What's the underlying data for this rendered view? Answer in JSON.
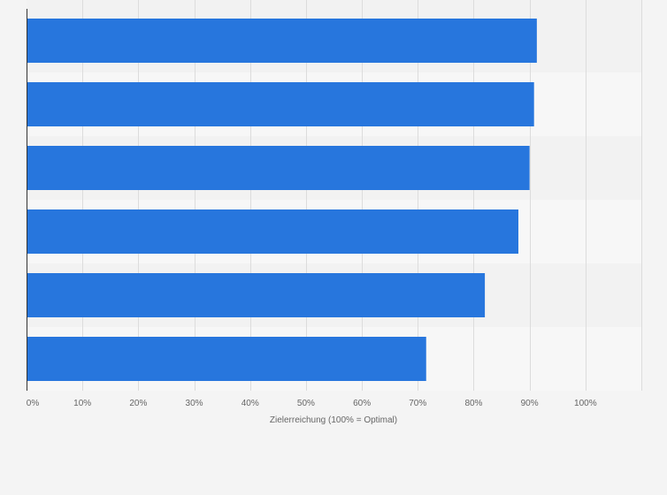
{
  "chart_data": {
    "type": "bar",
    "orientation": "horizontal",
    "categories": [
      "",
      "",
      "",
      "",
      "",
      ""
    ],
    "values": [
      91.3,
      90.8,
      90.0,
      88.0,
      82.0,
      71.5
    ],
    "xlabel": "Zielerreichung (100% = Optimal)",
    "ylabel": "",
    "xlim": [
      0,
      110
    ],
    "xticks": [
      "0%",
      "10%",
      "20%",
      "30%",
      "40%",
      "50%",
      "60%",
      "70%",
      "80%",
      "90%",
      "100%"
    ],
    "tick_unit": "%",
    "grid": true,
    "bar_color": "#2776dd",
    "band_colors": [
      "#f2f2f2",
      "#f7f7f7"
    ],
    "background_color": "#f4f4f4"
  }
}
